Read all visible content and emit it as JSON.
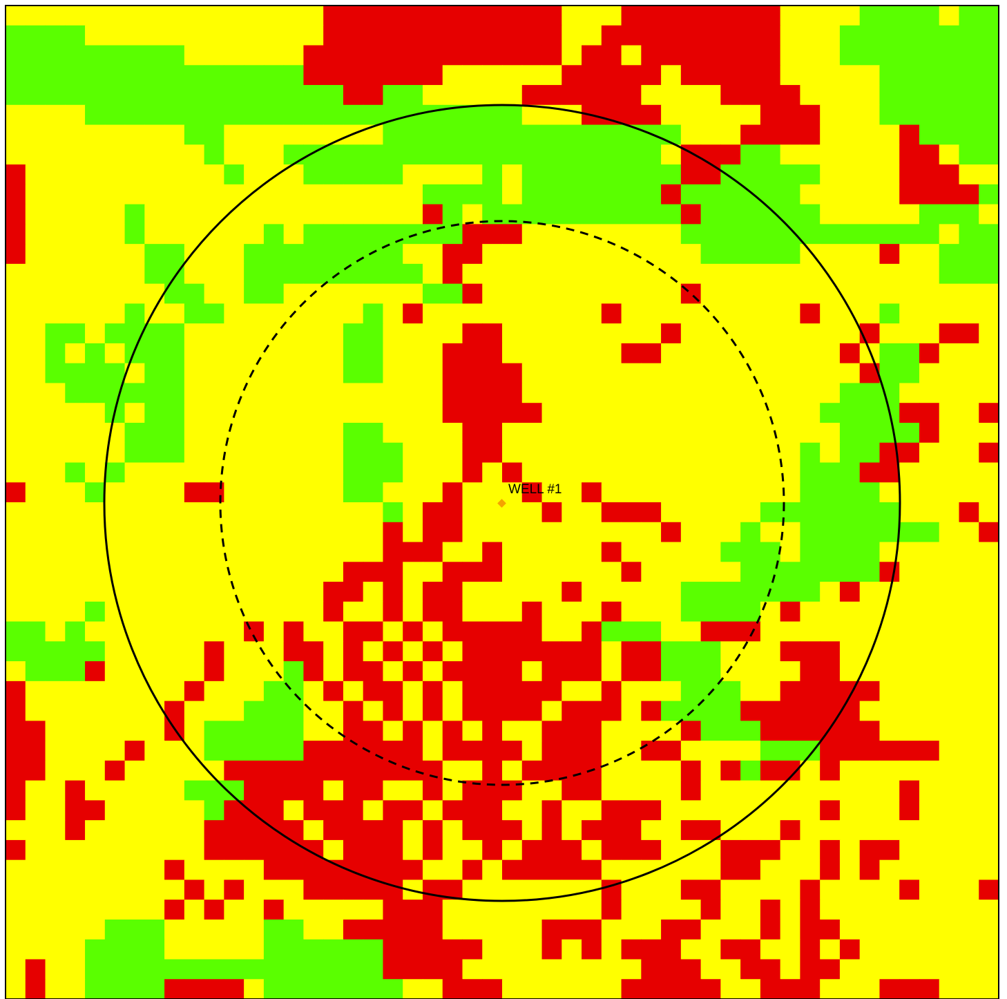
{
  "map": {
    "well_label": "WELL #1"
  }
}
